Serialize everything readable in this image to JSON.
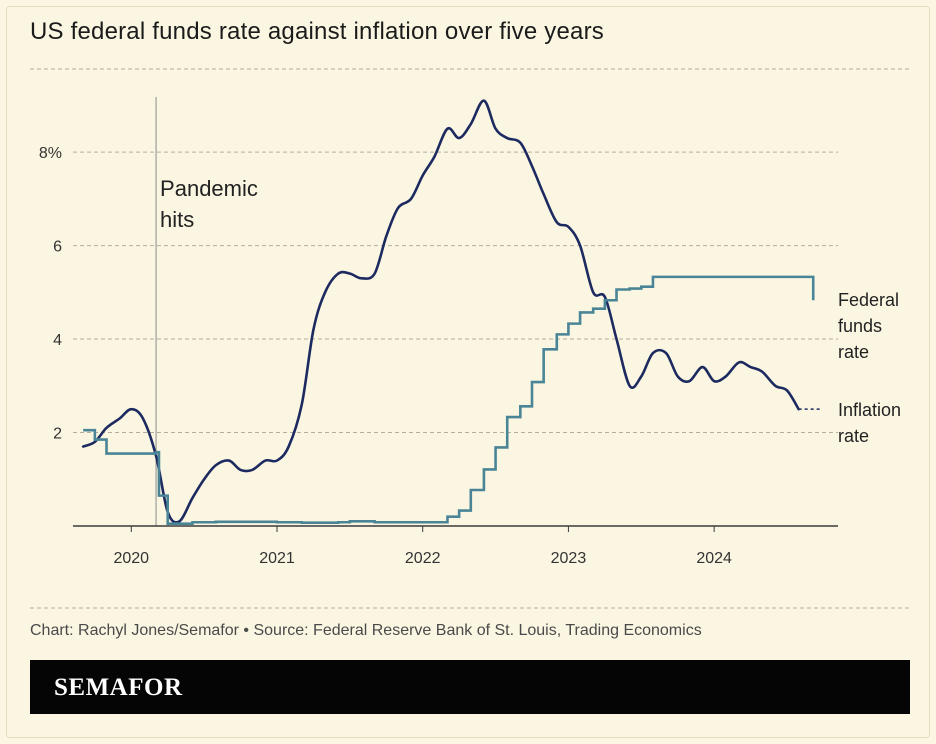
{
  "brand": {
    "name": "SEMAFOR"
  },
  "footer": {
    "source": "Chart: Rachyl Jones/Semafor • Source: Federal Reserve Bank of St. Louis, Trading Economics"
  },
  "colors": {
    "background": "#fbf6e2",
    "inflation": "#1d2a60",
    "fed_funds": "#4a8597",
    "grid": "#b3ae9e",
    "brand_bar": "#050505"
  },
  "chart_data": {
    "type": "line",
    "title": "US federal funds rate against inflation over five years",
    "xlabel": "",
    "ylabel": "",
    "xlim": [
      2019.6,
      2024.85
    ],
    "ylim": [
      0,
      9.2
    ],
    "yticks": [
      {
        "value": 8,
        "label": "8%"
      },
      {
        "value": 6,
        "label": "6"
      },
      {
        "value": 4,
        "label": "4"
      },
      {
        "value": 2,
        "label": "2"
      }
    ],
    "xticks": [
      {
        "value": 2020,
        "label": "2020"
      },
      {
        "value": 2021,
        "label": "2021"
      },
      {
        "value": 2022,
        "label": "2022"
      },
      {
        "value": 2023,
        "label": "2023"
      },
      {
        "value": 2024,
        "label": "2024"
      }
    ],
    "annotation": {
      "x": 2020.17,
      "lines": [
        "Pandemic",
        "hits"
      ]
    },
    "series": [
      {
        "name": "Inflation rate",
        "legend_lines": [
          "Inflation",
          "rate"
        ],
        "step": false,
        "color": "#1d2a60",
        "points": [
          [
            2019.67,
            1.7
          ],
          [
            2019.75,
            1.8
          ],
          [
            2019.83,
            2.1
          ],
          [
            2019.92,
            2.3
          ],
          [
            2020.0,
            2.5
          ],
          [
            2020.08,
            2.3
          ],
          [
            2020.17,
            1.5
          ],
          [
            2020.25,
            0.3
          ],
          [
            2020.33,
            0.1
          ],
          [
            2020.42,
            0.6
          ],
          [
            2020.5,
            1.0
          ],
          [
            2020.58,
            1.3
          ],
          [
            2020.67,
            1.4
          ],
          [
            2020.75,
            1.2
          ],
          [
            2020.83,
            1.2
          ],
          [
            2020.92,
            1.4
          ],
          [
            2021.0,
            1.4
          ],
          [
            2021.08,
            1.7
          ],
          [
            2021.17,
            2.6
          ],
          [
            2021.25,
            4.2
          ],
          [
            2021.33,
            5.0
          ],
          [
            2021.42,
            5.4
          ],
          [
            2021.5,
            5.4
          ],
          [
            2021.58,
            5.3
          ],
          [
            2021.67,
            5.4
          ],
          [
            2021.75,
            6.2
          ],
          [
            2021.83,
            6.8
          ],
          [
            2021.92,
            7.0
          ],
          [
            2022.0,
            7.5
          ],
          [
            2022.08,
            7.9
          ],
          [
            2022.17,
            8.5
          ],
          [
            2022.25,
            8.3
          ],
          [
            2022.33,
            8.6
          ],
          [
            2022.42,
            9.1
          ],
          [
            2022.5,
            8.5
          ],
          [
            2022.58,
            8.3
          ],
          [
            2022.67,
            8.2
          ],
          [
            2022.75,
            7.7
          ],
          [
            2022.83,
            7.1
          ],
          [
            2022.92,
            6.5
          ],
          [
            2023.0,
            6.4
          ],
          [
            2023.08,
            6.0
          ],
          [
            2023.17,
            5.0
          ],
          [
            2023.25,
            4.9
          ],
          [
            2023.33,
            4.0
          ],
          [
            2023.42,
            3.0
          ],
          [
            2023.5,
            3.2
          ],
          [
            2023.58,
            3.7
          ],
          [
            2023.67,
            3.7
          ],
          [
            2023.75,
            3.2
          ],
          [
            2023.83,
            3.1
          ],
          [
            2023.92,
            3.4
          ],
          [
            2024.0,
            3.1
          ],
          [
            2024.08,
            3.2
          ],
          [
            2024.17,
            3.5
          ],
          [
            2024.25,
            3.4
          ],
          [
            2024.33,
            3.3
          ],
          [
            2024.42,
            3.0
          ],
          [
            2024.5,
            2.9
          ],
          [
            2024.58,
            2.5
          ]
        ],
        "projection": [
          [
            2024.58,
            2.5
          ],
          [
            2024.74,
            2.5
          ]
        ]
      },
      {
        "name": "Federal funds rate",
        "legend_lines": [
          "Federal",
          "funds",
          "rate"
        ],
        "step": true,
        "color": "#4a8597",
        "points": [
          [
            2019.67,
            2.05
          ],
          [
            2019.75,
            1.85
          ],
          [
            2019.83,
            1.55
          ],
          [
            2020.17,
            1.58
          ],
          [
            2020.19,
            0.65
          ],
          [
            2020.25,
            0.05
          ],
          [
            2020.42,
            0.08
          ],
          [
            2020.58,
            0.09
          ],
          [
            2021.0,
            0.08
          ],
          [
            2021.17,
            0.07
          ],
          [
            2021.42,
            0.08
          ],
          [
            2021.5,
            0.1
          ],
          [
            2021.67,
            0.08
          ],
          [
            2022.17,
            0.2
          ],
          [
            2022.25,
            0.33
          ],
          [
            2022.33,
            0.77
          ],
          [
            2022.42,
            1.21
          ],
          [
            2022.5,
            1.68
          ],
          [
            2022.58,
            2.33
          ],
          [
            2022.67,
            2.56
          ],
          [
            2022.75,
            3.08
          ],
          [
            2022.83,
            3.78
          ],
          [
            2022.92,
            4.1
          ],
          [
            2023.0,
            4.33
          ],
          [
            2023.08,
            4.57
          ],
          [
            2023.17,
            4.65
          ],
          [
            2023.25,
            4.83
          ],
          [
            2023.33,
            5.06
          ],
          [
            2023.42,
            5.08
          ],
          [
            2023.5,
            5.12
          ],
          [
            2023.58,
            5.33
          ],
          [
            2024.67,
            5.33
          ],
          [
            2024.68,
            4.83
          ]
        ]
      }
    ]
  }
}
